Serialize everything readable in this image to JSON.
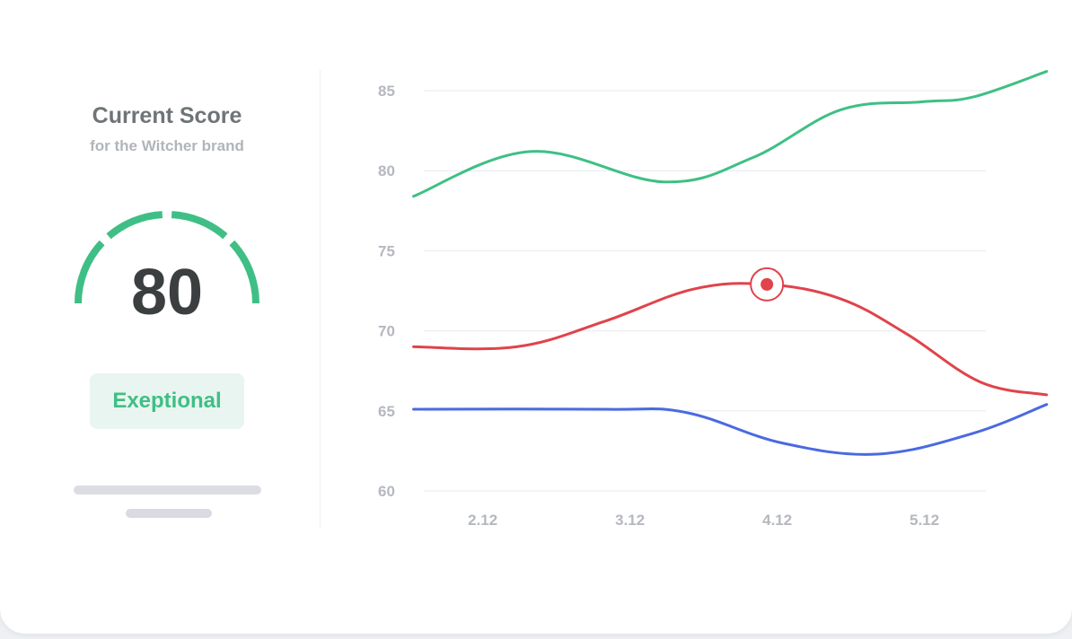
{
  "score_card": {
    "title": "Current Score",
    "subtitle": "for the Witcher brand",
    "score": "80",
    "rating": "Exeptional",
    "accent_color": "#3fbf85"
  },
  "chart_data": {
    "type": "line",
    "title": "",
    "xlabel": "",
    "ylabel": "",
    "x_ticks": [
      "2.12",
      "3.12",
      "4.12",
      "5.12"
    ],
    "y_ticks": [
      60,
      65,
      70,
      75,
      80,
      85
    ],
    "ylim": [
      60,
      85
    ],
    "grid": true,
    "legend": "none",
    "series": [
      {
        "color": "#3fbf85",
        "points": [
          [
            1.65,
            78.4
          ],
          [
            2.45,
            81.2
          ],
          [
            3.35,
            79.3
          ],
          [
            3.95,
            80.8
          ],
          [
            4.55,
            83.8
          ],
          [
            5.1,
            84.3
          ],
          [
            5.45,
            84.6
          ],
          [
            5.95,
            86.2
          ]
        ]
      },
      {
        "color": "#e0434b",
        "points": [
          [
            1.65,
            69.0
          ],
          [
            2.35,
            69.0
          ],
          [
            2.95,
            70.6
          ],
          [
            3.55,
            72.6
          ],
          [
            4.05,
            72.9
          ],
          [
            4.55,
            72.0
          ],
          [
            5.0,
            69.8
          ],
          [
            5.5,
            66.8
          ],
          [
            5.95,
            66.0
          ]
        ]
      },
      {
        "color": "#4a6ae0",
        "points": [
          [
            1.65,
            65.1
          ],
          [
            2.95,
            65.1
          ],
          [
            3.5,
            64.9
          ],
          [
            4.15,
            63.0
          ],
          [
            4.8,
            62.3
          ],
          [
            5.45,
            63.6
          ],
          [
            5.95,
            65.4
          ]
        ]
      }
    ],
    "highlight": {
      "series": 1,
      "x": 4.05,
      "y": 72.9
    }
  }
}
